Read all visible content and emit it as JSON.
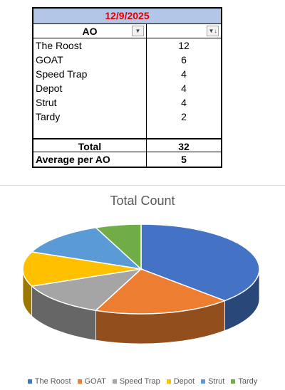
{
  "table": {
    "date": "12/9/2025",
    "header": {
      "col1": "AO",
      "dropdown1": "▼",
      "dropdown2": "▼↓"
    },
    "rows": [
      {
        "ao": "The Roost",
        "count": "12"
      },
      {
        "ao": "GOAT",
        "count": "6"
      },
      {
        "ao": "Speed Trap",
        "count": "4"
      },
      {
        "ao": "Depot",
        "count": "4"
      },
      {
        "ao": "Strut",
        "count": "4"
      },
      {
        "ao": "Tardy",
        "count": "2"
      }
    ],
    "total_label": "Total",
    "total_value": "32",
    "average_label": "Average per AO",
    "average_value": "5"
  },
  "chart_data": {
    "type": "pie",
    "title": "Total Count",
    "categories": [
      "The Roost",
      "GOAT",
      "Speed Trap",
      "Depot",
      "Strut",
      "Tardy"
    ],
    "values": [
      12,
      6,
      4,
      4,
      4,
      2
    ],
    "colors": [
      "#4472c4",
      "#ed7d31",
      "#a5a5a5",
      "#ffc000",
      "#5b9bd5",
      "#70ad47"
    ],
    "style": "3d",
    "legend_position": "bottom"
  }
}
